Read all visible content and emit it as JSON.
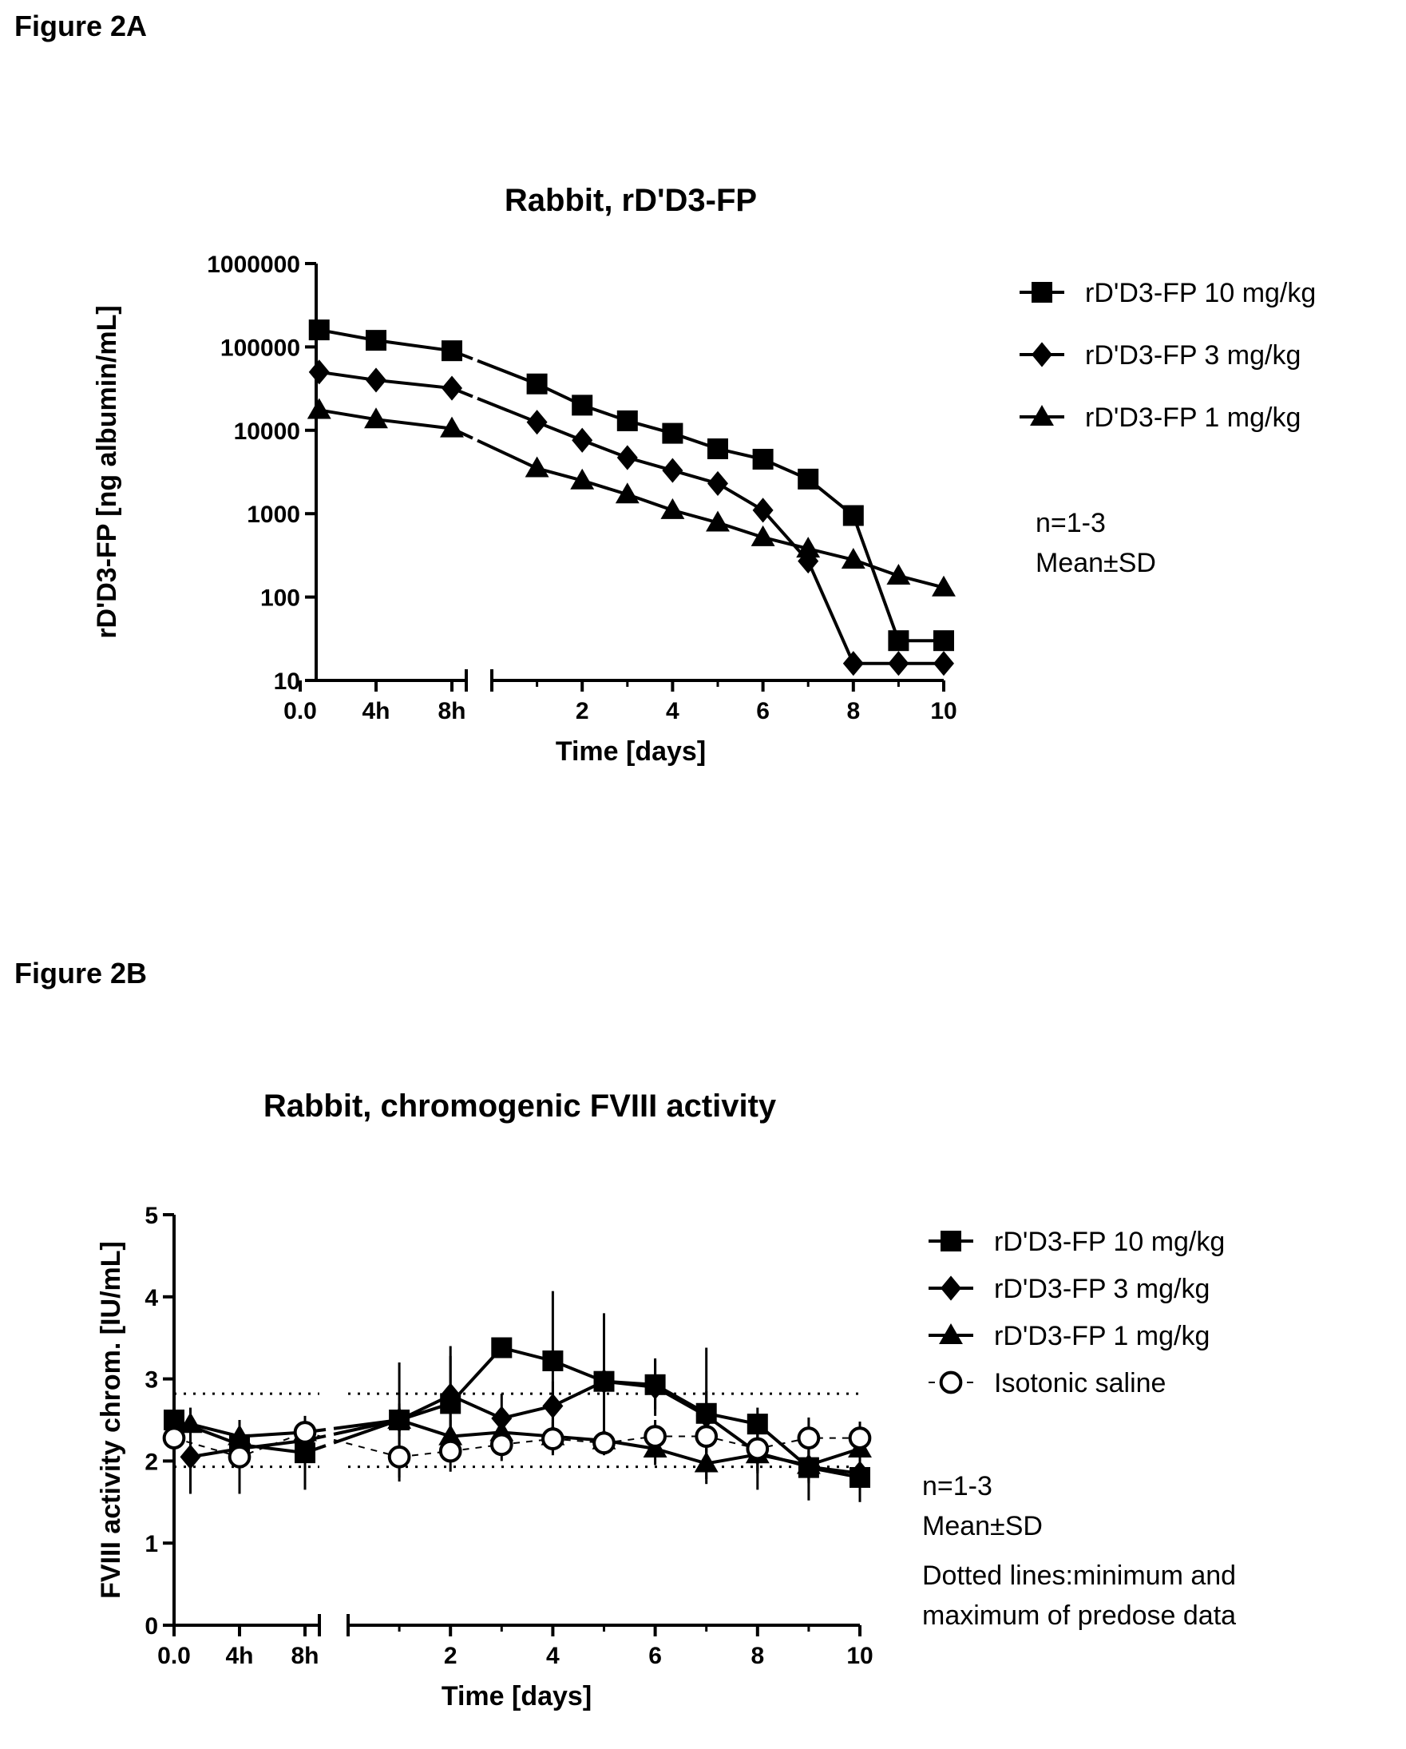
{
  "figure_a_label": "Figure 2A",
  "figure_b_label": "Figure 2B",
  "chart_data": [
    {
      "type": "line",
      "title": "Rabbit, rD'D3-FP",
      "xlabel": "Time [days]",
      "ylabel": "rD'D3-FP [ng albumin/mL]",
      "yscale": "log",
      "ylim": [
        10,
        1000000
      ],
      "y_ticks": [
        "10",
        "100",
        "1000",
        "10000",
        "100000",
        "1000000"
      ],
      "x_axis_break": true,
      "x_ticks_left": [
        "0.0",
        "4h",
        "8h"
      ],
      "x_ticks_right": [
        "2",
        "4",
        "6",
        "8",
        "10"
      ],
      "legend_position": "right",
      "notes": [
        "n=1-3",
        "Mean±SD"
      ],
      "series": [
        {
          "name": "rD'D3-FP 10 mg/kg",
          "marker": "square",
          "early": {
            "hours": [
              1,
              4,
              8
            ],
            "y": [
              160000,
              120000,
              90000
            ]
          },
          "days": {
            "x": [
              1,
              2,
              3,
              4,
              5,
              6,
              7,
              8,
              9,
              10
            ],
            "y": [
              36000,
              20000,
              13000,
              9200,
              6000,
              4500,
              2600,
              950,
              30,
              30
            ]
          }
        },
        {
          "name": "rD'D3-FP 3 mg/kg",
          "marker": "diamond",
          "early": {
            "hours": [
              1,
              4,
              8
            ],
            "y": [
              50000,
              40000,
              32000
            ]
          },
          "days": {
            "x": [
              1,
              2,
              3,
              4,
              5,
              6,
              7,
              8,
              9,
              10
            ],
            "y": [
              12500,
              7600,
              4700,
              3300,
              2300,
              1100,
              270,
              16,
              16,
              16
            ]
          }
        },
        {
          "name": "rD'D3-FP 1 mg/kg",
          "marker": "triangle",
          "early": {
            "hours": [
              1,
              4,
              8
            ],
            "y": [
              17500,
              13500,
              10500
            ]
          },
          "days": {
            "x": [
              1,
              2,
              3,
              4,
              5,
              6,
              7,
              8,
              9,
              10
            ],
            "y": [
              3500,
              2500,
              1700,
              1100,
              780,
              520,
              380,
              280,
              180,
              130
            ]
          }
        }
      ]
    },
    {
      "type": "line",
      "title": "Rabbit, chromogenic FVIII activity",
      "xlabel": "Time [days]",
      "ylabel": "FVIII activity chrom. [IU/mL]",
      "ylim": [
        0,
        5
      ],
      "y_ticks": [
        "0",
        "1",
        "2",
        "3",
        "4",
        "5"
      ],
      "x_axis_break": true,
      "x_ticks_left": [
        "0.0",
        "4h",
        "8h"
      ],
      "x_ticks_right": [
        "2",
        "4",
        "6",
        "8",
        "10"
      ],
      "legend_position": "right",
      "reference_lines": [
        1.93,
        2.82
      ],
      "notes": [
        "n=1-3",
        "Mean±SD",
        "Dotted lines:minimum and",
        "maximum of predose data"
      ],
      "series": [
        {
          "name": "rD'D3-FP 10 mg/kg",
          "marker": "square",
          "early": {
            "hours": [
              0,
              4,
              8
            ],
            "y": [
              2.5,
              2.2,
              2.1
            ]
          },
          "days": {
            "x": [
              1,
              2,
              3,
              4,
              5,
              6,
              7,
              8,
              9,
              10
            ],
            "y": [
              2.5,
              2.7,
              3.38,
              3.22,
              2.97,
              2.93,
              2.58,
              2.45,
              1.92,
              1.8
            ]
          },
          "sd": [
            0.15,
            0.2,
            0.45,
            0.7,
            0.58,
            0.1,
            0.85,
            0.4,
            0.3,
            0.8,
            0.2,
            0.4,
            0.3
          ]
        },
        {
          "name": "rD'D3-FP 3 mg/kg",
          "marker": "diamond",
          "early": {
            "hours": [
              1,
              4,
              8
            ],
            "y": [
              2.05,
              2.15,
              2.25
            ]
          },
          "days": {
            "x": [
              1,
              2,
              3,
              4,
              5,
              6,
              7,
              8,
              9,
              10
            ],
            "y": [
              2.5,
              2.8,
              2.52,
              2.67,
              2.97,
              2.9,
              2.55,
              2.1,
              1.93,
              1.85
            ]
          },
          "sd": [
            0.45,
            0.2,
            0.15,
            0.2,
            0.6,
            0.3,
            0.3,
            0.83,
            0.35,
            0.3,
            0.45,
            0.2,
            0.2
          ]
        },
        {
          "name": "rD'D3-FP 1 mg/kg",
          "marker": "triangle",
          "early": {
            "hours": [
              1,
              4,
              8
            ],
            "y": [
              2.45,
              2.3,
              2.35
            ]
          },
          "days": {
            "x": [
              1,
              2,
              3,
              4,
              5,
              6,
              7,
              8,
              9,
              10
            ],
            "y": [
              2.5,
              2.3,
              2.35,
              2.3,
              2.25,
              2.15,
              1.97,
              2.08,
              1.95,
              2.15
            ]
          },
          "sd": [
            0.2,
            0.2,
            0.15,
            0.15,
            0.2,
            0.15,
            0.2,
            0.15,
            0.2,
            0.25,
            0.2,
            0.2,
            0.2
          ]
        },
        {
          "name": "Isotonic saline",
          "marker": "circle-open",
          "line": "dashed",
          "early": {
            "hours": [
              0,
              4,
              8
            ],
            "y": [
              2.28,
              2.05,
              2.35
            ]
          },
          "days": {
            "x": [
              1,
              2,
              3,
              4,
              5,
              6,
              7,
              8,
              9,
              10
            ],
            "y": [
              2.05,
              2.12,
              2.2,
              2.27,
              2.22,
              2.3,
              2.3,
              2.15,
              2.28,
              2.28
            ]
          },
          "sd": [
            0.1,
            0.45,
            0.15,
            0.3,
            0.25,
            0.2,
            0.2,
            0.15,
            0.2,
            0.2,
            0.3,
            0.25,
            0.2
          ]
        }
      ]
    }
  ]
}
